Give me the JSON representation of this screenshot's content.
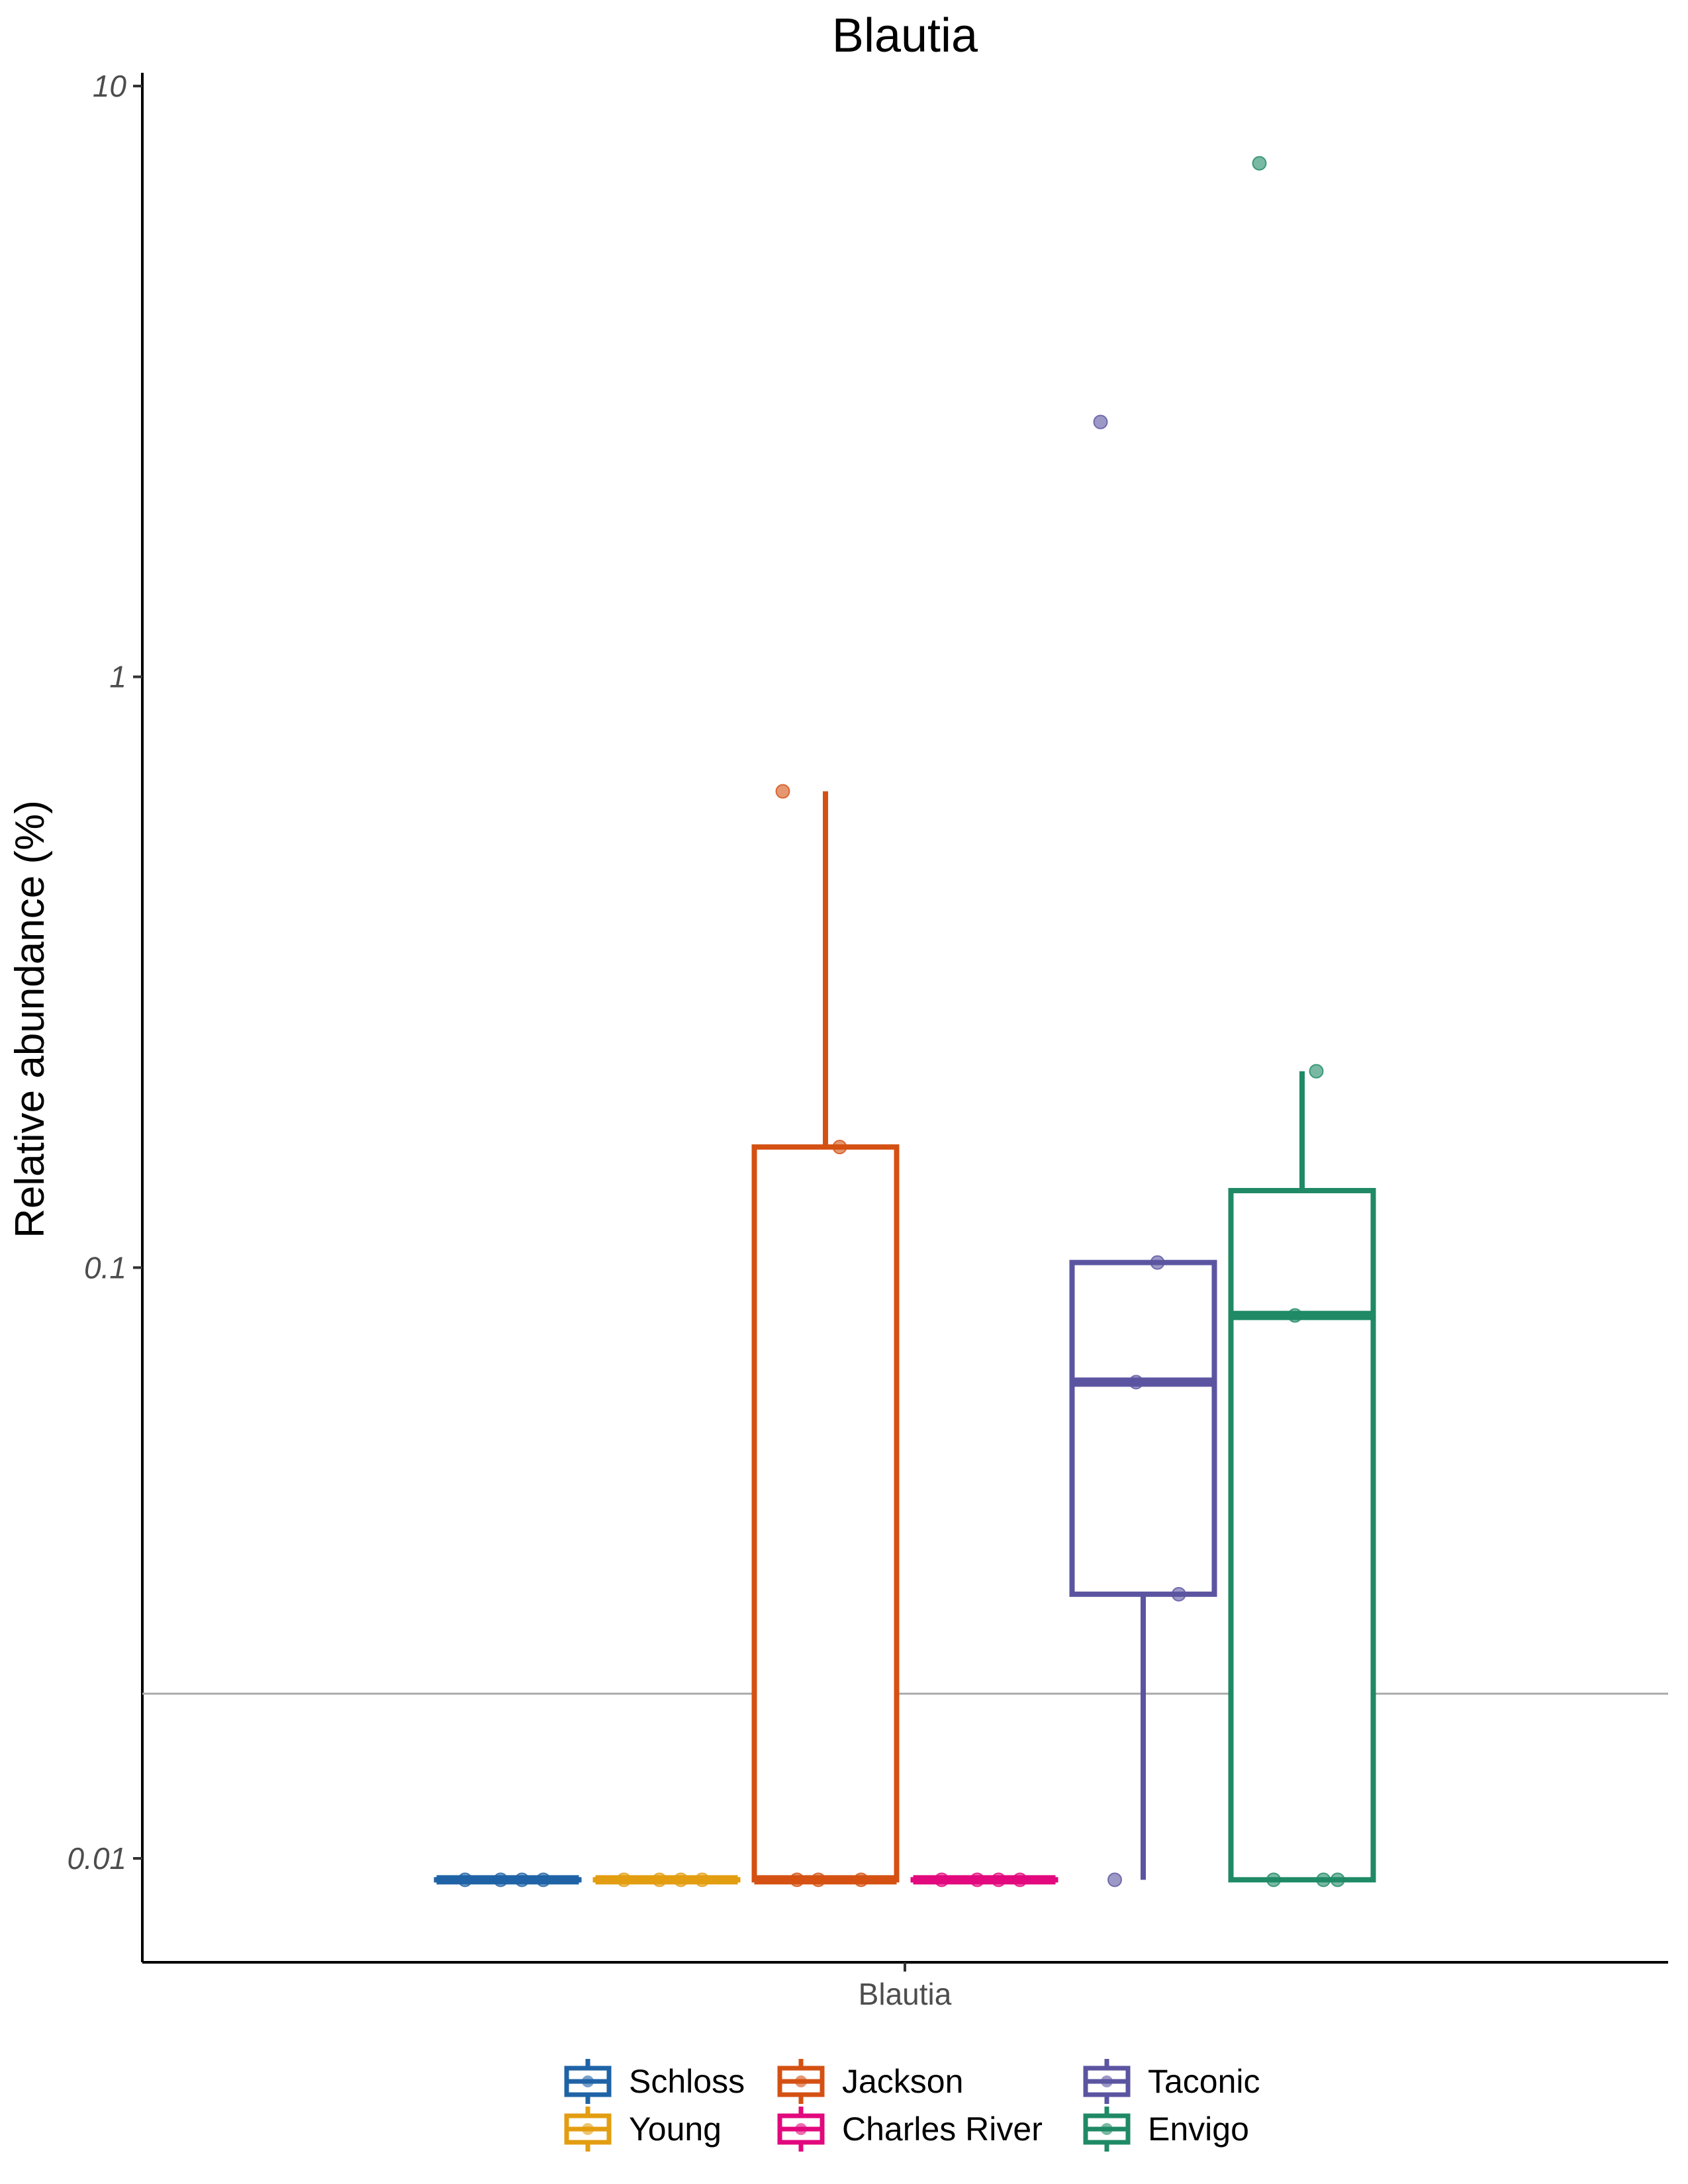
{
  "chart_data": {
    "type": "boxplot",
    "title": "Blautia",
    "xlabel": "",
    "ylabel": "Relative abundance (%)",
    "y_scale": "log10",
    "ylim": [
      0.0055,
      13
    ],
    "y_ticks": [
      {
        "value": 0.01,
        "label": "0.01"
      },
      {
        "value": 0.1,
        "label": "0.1"
      },
      {
        "value": 1,
        "label": "1"
      },
      {
        "value": 10,
        "label": "10"
      }
    ],
    "categories": [
      "Blautia"
    ],
    "reference_line": 0.019,
    "legend": {
      "position": "bottom",
      "entries": [
        "Schloss",
        "Young",
        "Jackson",
        "Charles River",
        "Taconic",
        "Envigo"
      ]
    },
    "series": [
      {
        "name": "Schloss",
        "color": "#1f63a6",
        "box": {
          "min": 0.0092,
          "q1": 0.0092,
          "median": 0.0092,
          "q3": 0.0092,
          "max": 0.0092
        },
        "points": [
          0.0092,
          0.0092,
          0.0092,
          0.0092
        ]
      },
      {
        "name": "Young",
        "color": "#e39d11",
        "box": {
          "min": 0.0092,
          "q1": 0.0092,
          "median": 0.0092,
          "q3": 0.0092,
          "max": 0.0092
        },
        "points": [
          0.0092,
          0.0092,
          0.0092,
          0.0092
        ]
      },
      {
        "name": "Jackson",
        "color": "#d45113",
        "box": {
          "min": 0.0092,
          "q1": 0.0092,
          "median": 0.0092,
          "q3": 0.16,
          "max": 0.64
        },
        "points": [
          0.64,
          0.16,
          0.0092,
          0.0092,
          0.0092
        ]
      },
      {
        "name": "Charles River",
        "color": "#e2087d",
        "box": {
          "min": 0.0092,
          "q1": 0.0092,
          "median": 0.0092,
          "q3": 0.0092,
          "max": 0.0092
        },
        "points": [
          0.0092,
          0.0092,
          0.0092,
          0.0092
        ]
      },
      {
        "name": "Taconic",
        "color": "#5b55a1",
        "box": {
          "min": 0.0092,
          "q1": 0.028,
          "median": 0.064,
          "q3": 0.102,
          "max": 0.102
        },
        "points": [
          2.7,
          0.102,
          0.064,
          0.028,
          0.0092
        ]
      },
      {
        "name": "Envigo",
        "color": "#1f8a65",
        "box": {
          "min": 0.0092,
          "q1": 0.0092,
          "median": 0.083,
          "q3": 0.135,
          "max": 0.215
        },
        "points": [
          7.4,
          0.215,
          0.083,
          0.0092,
          0.0092,
          0.0092
        ]
      }
    ]
  }
}
